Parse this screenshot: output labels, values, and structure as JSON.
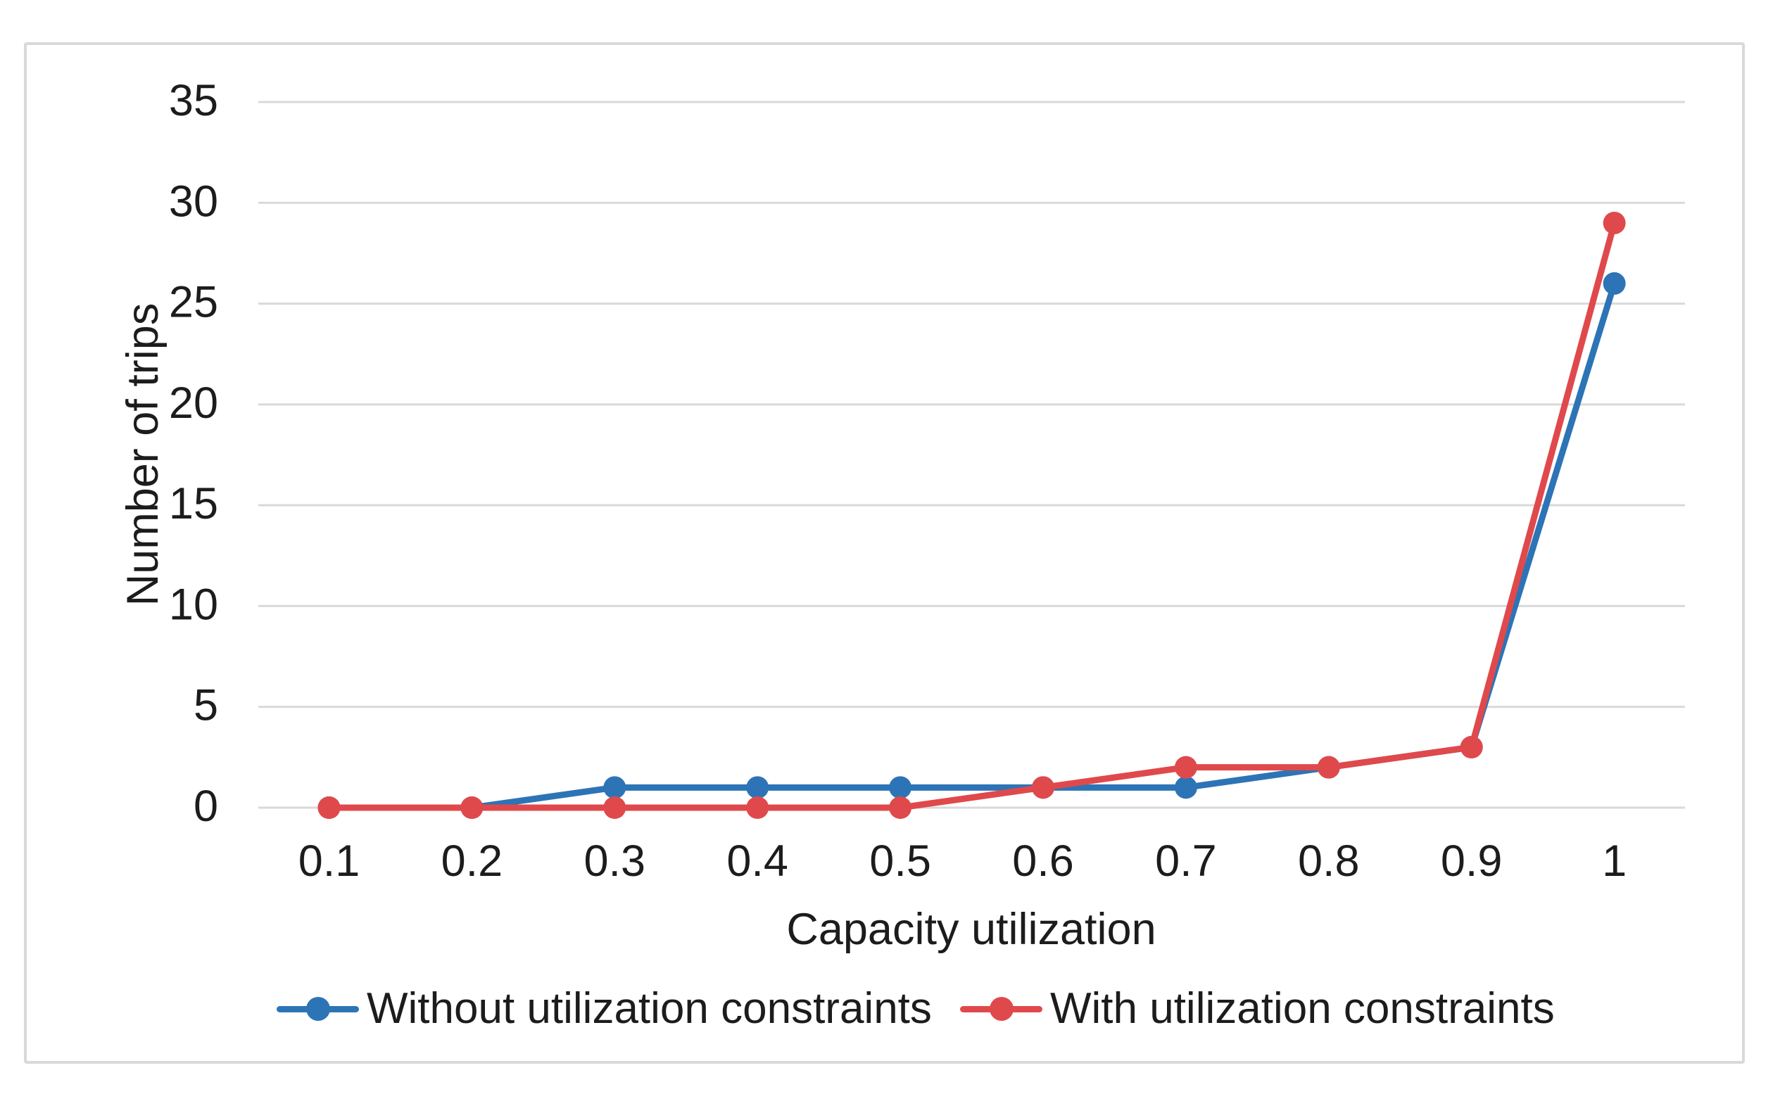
{
  "chart_data": {
    "type": "line",
    "x_tick_labels": [
      "0.1",
      "0.2",
      "0.3",
      "0.4",
      "0.5",
      "0.6",
      "0.7",
      "0.8",
      "0.9",
      "1"
    ],
    "x": [
      0.1,
      0.2,
      0.3,
      0.4,
      0.5,
      0.6,
      0.7,
      0.8,
      0.9,
      1
    ],
    "series": [
      {
        "name": "Without utilization constraints",
        "color": "#2d74b6",
        "values": [
          0,
          0,
          1,
          1,
          1,
          1,
          1,
          2,
          3,
          26
        ]
      },
      {
        "name": "With utilization constraints",
        "color": "#e0494c",
        "values": [
          0,
          0,
          0,
          0,
          0,
          1,
          2,
          2,
          3,
          29
        ]
      }
    ],
    "xlabel": "Capacity utilization",
    "ylabel": "Number of trips",
    "ylim": [
      0,
      35
    ],
    "y_ticks": [
      0,
      5,
      10,
      15,
      20,
      25,
      30,
      35
    ],
    "grid": "horizontal",
    "gridline_color": "#d9d9d9",
    "border_color": "#d9d9d9",
    "text_color": "#1c1c1c",
    "background": "#ffffff",
    "legend_position": "bottom",
    "marker_style": "circle"
  }
}
